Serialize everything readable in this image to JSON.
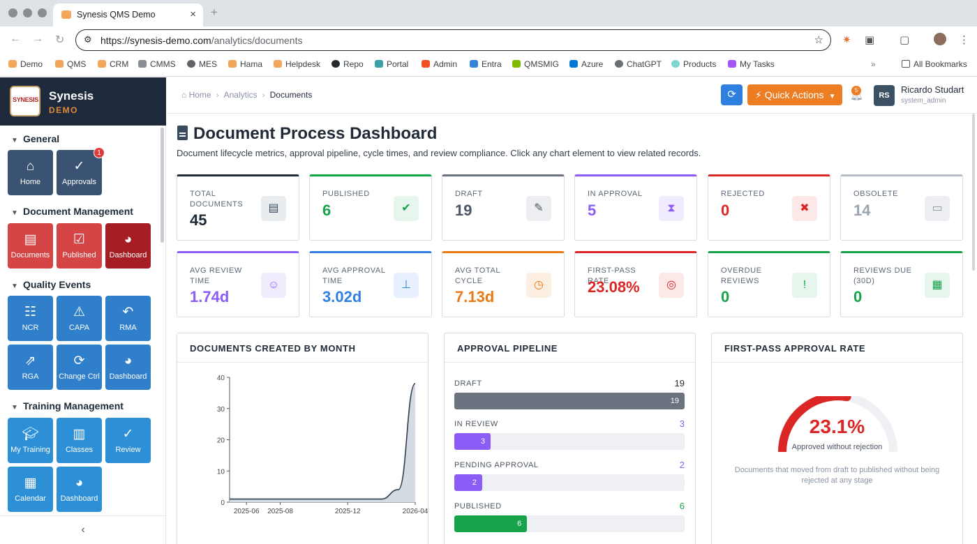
{
  "browser": {
    "tab_title": "Synesis QMS Demo",
    "url_host": "https://synesis-demo.com",
    "url_path": "/analytics/documents",
    "bookmarks": [
      "Demo",
      "QMS",
      "CRM",
      "CMMS",
      "MES",
      "Hama",
      "Helpdesk",
      "Repo",
      "Portal",
      "Admin",
      "Entra",
      "QMSMIG",
      "Azure",
      "ChatGPT",
      "Products",
      "My Tasks"
    ],
    "all_bookmarks": "All Bookmarks"
  },
  "brand": {
    "name": "Synesis",
    "sub": "DEMO",
    "logo_text": "SYNESIS"
  },
  "sidebar": {
    "sections": [
      {
        "title": "General",
        "items": [
          {
            "label": "Home",
            "icon": "home-icon"
          },
          {
            "label": "Approvals",
            "icon": "clipboard-check-icon",
            "badge": "1"
          }
        ]
      },
      {
        "title": "Document Management",
        "items": [
          {
            "label": "Documents",
            "icon": "file-icon"
          },
          {
            "label": "Published",
            "icon": "check-square-icon"
          },
          {
            "label": "Dashboard",
            "icon": "pie-chart-icon"
          }
        ]
      },
      {
        "title": "Quality Events",
        "items": [
          {
            "label": "NCR",
            "icon": "clipboard-list-icon"
          },
          {
            "label": "CAPA",
            "icon": "warning-icon"
          },
          {
            "label": "RMA",
            "icon": "undo-icon"
          },
          {
            "label": "RGA",
            "icon": "share-icon"
          },
          {
            "label": "Change Ctrl",
            "icon": "sync-icon"
          },
          {
            "label": "Dashboard",
            "icon": "pie-chart-icon"
          }
        ]
      },
      {
        "title": "Training Management",
        "items": [
          {
            "label": "My Training",
            "icon": "graduation-cap-icon"
          },
          {
            "label": "Classes",
            "icon": "book-icon"
          },
          {
            "label": "Review",
            "icon": "clipboard-check-icon"
          },
          {
            "label": "Calendar",
            "icon": "calendar-icon"
          },
          {
            "label": "Dashboard",
            "icon": "pie-chart-icon"
          }
        ]
      }
    ],
    "collapse_icon": "chevron-left-icon"
  },
  "header": {
    "breadcrumbs": [
      "Home",
      "Analytics",
      "Documents"
    ],
    "quick_actions": "Quick Actions",
    "notification_count": "5",
    "user": {
      "initials": "RS",
      "name": "Ricardo Studart",
      "role": "system_admin"
    }
  },
  "page": {
    "title": "Document Process Dashboard",
    "subtitle": "Document lifecycle metrics, approval pipeline, cycle times, and review compliance. Click any chart element to view related records."
  },
  "kpis_row1": [
    {
      "label": "TOTAL DOCUMENTS",
      "value": "45",
      "color": "#1f2a37",
      "accent": "#1f2a37",
      "icon": "file-icon",
      "icon_bg": "#e9ecef",
      "icon_color": "#3b4b5e",
      "glyph": "▤"
    },
    {
      "label": "PUBLISHED",
      "value": "6",
      "color": "#16a34a",
      "accent": "#16a34a",
      "icon": "check-circle-icon",
      "icon_bg": "#e6f6ec",
      "icon_color": "#16a34a",
      "glyph": "✔"
    },
    {
      "label": "DRAFT",
      "value": "19",
      "color": "#4b5563",
      "accent": "#6b7280",
      "icon": "pencil-icon",
      "icon_bg": "#eceef1",
      "icon_color": "#4b5563",
      "glyph": "✎"
    },
    {
      "label": "IN APPROVAL",
      "value": "5",
      "color": "#8b5cf6",
      "accent": "#8b5cf6",
      "icon": "hourglass-icon",
      "icon_bg": "#f1ebfe",
      "icon_color": "#8b5cf6",
      "glyph": "⧗"
    },
    {
      "label": "REJECTED",
      "value": "0",
      "color": "#dc2626",
      "accent": "#dc2626",
      "icon": "x-circle-icon",
      "icon_bg": "#fde8e8",
      "icon_color": "#dc2626",
      "glyph": "✖"
    },
    {
      "label": "OBSOLETE",
      "value": "14",
      "color": "#9aa3ae",
      "accent": "#b5bcc4",
      "icon": "archive-icon",
      "icon_bg": "#eceef1",
      "icon_color": "#8a94a3",
      "glyph": "▭"
    }
  ],
  "kpis_row2": [
    {
      "label": "AVG REVIEW TIME",
      "value": "1.74d",
      "color": "#8b5cf6",
      "accent": "#8b5cf6",
      "icon": "user-check-icon",
      "icon_bg": "#f1ebfe",
      "icon_color": "#8b5cf6",
      "glyph": "☺"
    },
    {
      "label": "AVG APPROVAL TIME",
      "value": "3.02d",
      "color": "#2f7fe0",
      "accent": "#2f7fe0",
      "icon": "stamp-icon",
      "icon_bg": "#e7f0fc",
      "icon_color": "#2f7fe0",
      "glyph": "⊥"
    },
    {
      "label": "AVG TOTAL CYCLE",
      "value": "7.13d",
      "color": "#ea7a14",
      "accent": "#ea7a14",
      "icon": "clock-icon",
      "icon_bg": "#fdeee2",
      "icon_color": "#ea7a14",
      "glyph": "◷"
    },
    {
      "label": "FIRST-PASS RATE",
      "value": "23.08%",
      "color": "#dc2626",
      "accent": "#dc2626",
      "icon": "target-icon",
      "icon_bg": "#fde8e8",
      "icon_color": "#dc2626",
      "glyph": "◎"
    },
    {
      "label": "OVERDUE REVIEWS",
      "value": "0",
      "color": "#16a34a",
      "accent": "#16a34a",
      "icon": "exclamation-circle-icon",
      "icon_bg": "#e6f6ec",
      "icon_color": "#16a34a",
      "glyph": "!"
    },
    {
      "label": "REVIEWS DUE (30D)",
      "value": "0",
      "color": "#16a34a",
      "accent": "#16a34a",
      "icon": "calendar-icon",
      "icon_bg": "#e6f6ec",
      "icon_color": "#16a34a",
      "glyph": "▦"
    }
  ],
  "panels": {
    "created_title": "DOCUMENTS CREATED BY MONTH",
    "pipeline_title": "APPROVAL PIPELINE",
    "firstpass_title": "FIRST-PASS APPROVAL RATE"
  },
  "chart_data": {
    "type": "area",
    "title": "DOCUMENTS CREATED BY MONTH",
    "x": [
      "2025-05",
      "2025-06",
      "2025-07",
      "2025-08",
      "2025-09",
      "2025-10",
      "2025-11",
      "2025-12",
      "2026-01",
      "2026-02",
      "2026-03",
      "2026-04"
    ],
    "x_ticks": [
      "2025-06",
      "2025-08",
      "2025-12",
      "2026-04"
    ],
    "values": [
      1,
      1,
      1,
      1,
      1,
      1,
      1,
      1,
      1,
      1,
      4,
      38
    ],
    "ylim": [
      0,
      40
    ],
    "y_ticks": [
      0,
      10,
      20,
      30,
      40
    ],
    "line_color": "#2c3e50",
    "fill_color": "#d5dbe2",
    "grid": false
  },
  "pipeline": [
    {
      "label": "DRAFT",
      "count": "19",
      "value": 19,
      "color": "#6b7280"
    },
    {
      "label": "IN REVIEW",
      "count": "3",
      "value": 3,
      "color": "#8b5cf6"
    },
    {
      "label": "PENDING APPROVAL",
      "count": "2",
      "value": 2,
      "color": "#8b5cf6"
    },
    {
      "label": "PUBLISHED",
      "count": "6",
      "value": 6,
      "color": "#16a34a"
    }
  ],
  "pipeline_max": 19,
  "first_pass": {
    "percent_text": "23.1%",
    "rate": 0.231,
    "caption": "Approved without rejection",
    "note": "Documents that moved from draft to published without being rejected at any stage",
    "color": "#dc2626"
  }
}
